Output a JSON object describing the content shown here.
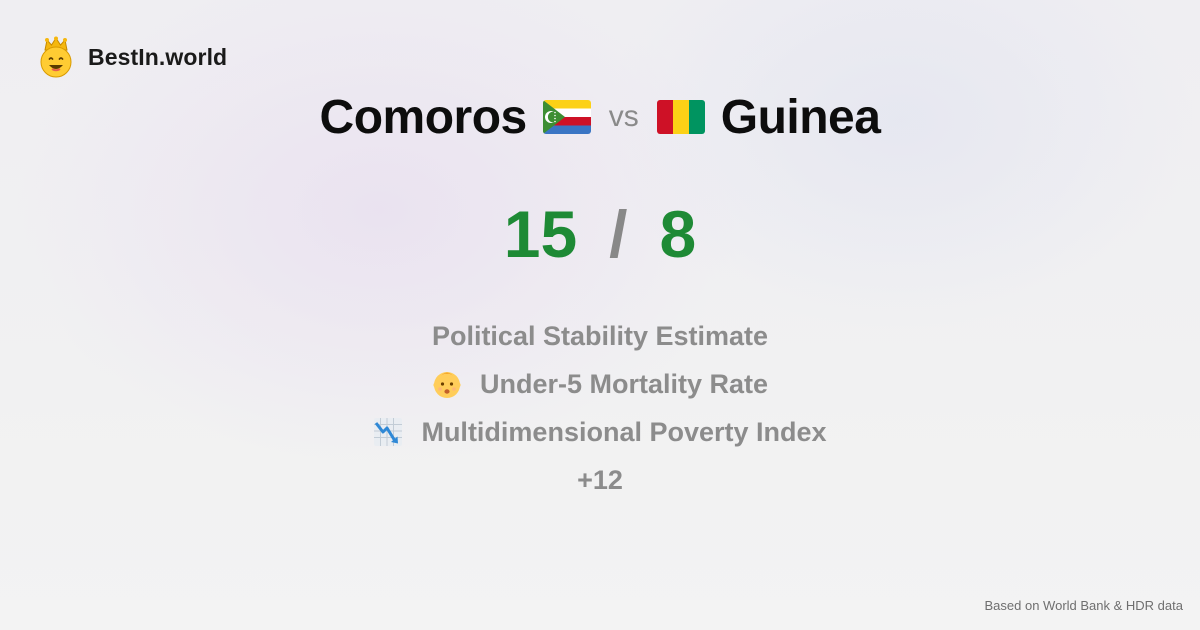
{
  "brand": {
    "name": "BestIn.world",
    "icon": "crown-smiley-icon"
  },
  "comparison": {
    "left_country": "Comoros",
    "left_flag": "comoros-flag-icon",
    "vs_label": "vs",
    "right_country": "Guinea",
    "right_flag": "guinea-flag-icon"
  },
  "score": {
    "left": "15",
    "separator": "/",
    "right": "8",
    "color": "#1e8a35"
  },
  "metrics": [
    {
      "label": "Political Stability Estimate",
      "icon": ""
    },
    {
      "label": "Under-5 Mortality Rate",
      "icon": "baby-icon"
    },
    {
      "label": "Multidimensional Poverty Index",
      "icon": "chart-decreasing-icon"
    }
  ],
  "more_label": "+12",
  "footer": {
    "source": "Based on World Bank & HDR data"
  }
}
